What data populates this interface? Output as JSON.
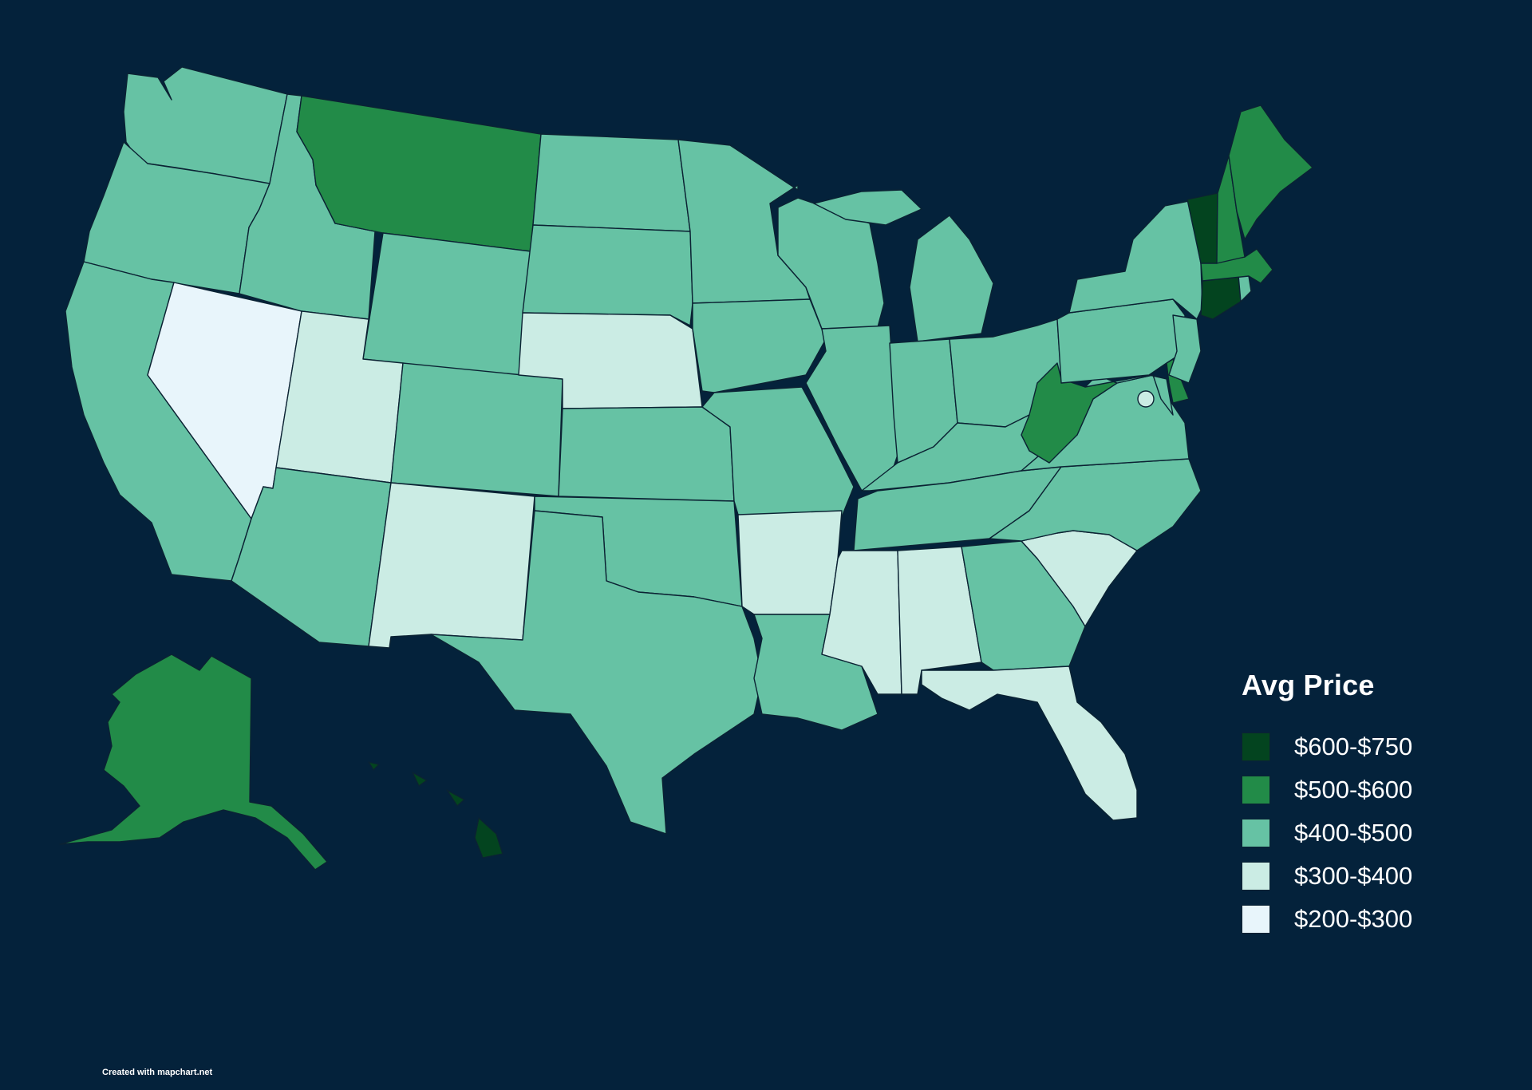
{
  "legend": {
    "title": "Avg Price",
    "items": [
      {
        "label": "$600-$750",
        "color": "#03441f"
      },
      {
        "label": "$500-$600",
        "color": "#228b48"
      },
      {
        "label": "$400-$500",
        "color": "#66c2a4"
      },
      {
        "label": "$300-$400",
        "color": "#cbece4"
      },
      {
        "label": "$200-$300",
        "color": "#e8f5fb"
      }
    ]
  },
  "credit": "Created with mapchart.net",
  "states": [
    {
      "code": "WA",
      "bin": 2
    },
    {
      "code": "OR",
      "bin": 2
    },
    {
      "code": "CA",
      "bin": 2
    },
    {
      "code": "NV",
      "bin": 4
    },
    {
      "code": "ID",
      "bin": 2
    },
    {
      "code": "MT",
      "bin": 1
    },
    {
      "code": "WY",
      "bin": 2
    },
    {
      "code": "UT",
      "bin": 3
    },
    {
      "code": "AZ",
      "bin": 2
    },
    {
      "code": "CO",
      "bin": 2
    },
    {
      "code": "NM",
      "bin": 3
    },
    {
      "code": "ND",
      "bin": 2
    },
    {
      "code": "SD",
      "bin": 2
    },
    {
      "code": "NE",
      "bin": 3
    },
    {
      "code": "KS",
      "bin": 2
    },
    {
      "code": "OK",
      "bin": 2
    },
    {
      "code": "TX",
      "bin": 2
    },
    {
      "code": "MN",
      "bin": 2
    },
    {
      "code": "IA",
      "bin": 2
    },
    {
      "code": "MO",
      "bin": 2
    },
    {
      "code": "AR",
      "bin": 3
    },
    {
      "code": "LA",
      "bin": 2
    },
    {
      "code": "WI",
      "bin": 2
    },
    {
      "code": "IL",
      "bin": 2
    },
    {
      "code": "MI",
      "bin": 2
    },
    {
      "code": "IN",
      "bin": 2
    },
    {
      "code": "OH",
      "bin": 2
    },
    {
      "code": "KY",
      "bin": 2
    },
    {
      "code": "TN",
      "bin": 2
    },
    {
      "code": "MS",
      "bin": 3
    },
    {
      "code": "AL",
      "bin": 3
    },
    {
      "code": "GA",
      "bin": 2
    },
    {
      "code": "FL",
      "bin": 3
    },
    {
      "code": "SC",
      "bin": 3
    },
    {
      "code": "NC",
      "bin": 2
    },
    {
      "code": "VA",
      "bin": 2
    },
    {
      "code": "WV",
      "bin": 1
    },
    {
      "code": "MD",
      "bin": 2
    },
    {
      "code": "DE",
      "bin": 1
    },
    {
      "code": "DC",
      "bin": 3
    },
    {
      "code": "PA",
      "bin": 2
    },
    {
      "code": "NJ",
      "bin": 2
    },
    {
      "code": "NY",
      "bin": 2
    },
    {
      "code": "CT",
      "bin": 0
    },
    {
      "code": "RI",
      "bin": 2
    },
    {
      "code": "MA",
      "bin": 1
    },
    {
      "code": "VT",
      "bin": 0
    },
    {
      "code": "NH",
      "bin": 1
    },
    {
      "code": "ME",
      "bin": 1
    },
    {
      "code": "AK",
      "bin": 1
    },
    {
      "code": "HI",
      "bin": 0
    }
  ]
}
